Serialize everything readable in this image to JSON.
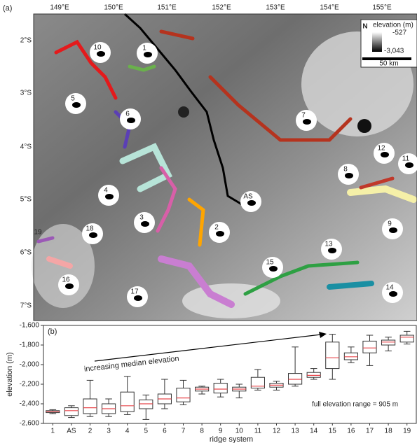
{
  "map": {
    "panel_label": "(a)",
    "lon_ticks": [
      "149°E",
      "150°E",
      "151°E",
      "152°E",
      "153°E",
      "154°E",
      "155°E"
    ],
    "lat_ticks": [
      "2°S",
      "3°S",
      "4°S",
      "5°S",
      "6°S",
      "7°S"
    ],
    "legend": {
      "title": "elevation (m)",
      "max_label": "-527",
      "min_label": "-3,043",
      "scale_bar": "50 km",
      "north": "N"
    },
    "labels": [
      "10",
      "1",
      "5",
      "6",
      "7",
      "12",
      "8",
      "11",
      "4",
      "AS",
      "3",
      "2",
      "9",
      "18",
      "19",
      "13",
      "15",
      "16",
      "14",
      "17"
    ]
  },
  "chart_data": {
    "type": "box",
    "panel_label": "(b)",
    "y_label": "elevation (m)",
    "x_label": "ridge system",
    "annotations": [
      "increasing median elevation",
      "full elevation range = 905 m"
    ],
    "categories": [
      "1",
      "AS",
      "2",
      "3",
      "4",
      "5",
      "6",
      "7",
      "8",
      "9",
      "10",
      "11",
      "12",
      "13",
      "14",
      "15",
      "16",
      "17",
      "18",
      "19"
    ],
    "boxes": [
      {
        "min": -2500,
        "q1": -2490,
        "median": -2480,
        "q3": -2470,
        "max": -2460
      },
      {
        "min": -2540,
        "q1": -2520,
        "median": -2470,
        "q3": -2440,
        "max": -2420
      },
      {
        "min": -2530,
        "q1": -2500,
        "median": -2440,
        "q3": -2350,
        "max": -2160
      },
      {
        "min": -2530,
        "q1": -2500,
        "median": -2450,
        "q3": -2400,
        "max": -2350
      },
      {
        "min": -2510,
        "q1": -2480,
        "median": -2420,
        "q3": -2280,
        "max": -2120
      },
      {
        "min": -2560,
        "q1": -2450,
        "median": -2400,
        "q3": -2360,
        "max": -2310
      },
      {
        "min": -2450,
        "q1": -2400,
        "median": -2350,
        "q3": -2300,
        "max": -2150
      },
      {
        "min": -2410,
        "q1": -2380,
        "median": -2340,
        "q3": -2240,
        "max": -2160
      },
      {
        "min": -2300,
        "q1": -2270,
        "median": -2250,
        "q3": -2230,
        "max": -2220
      },
      {
        "min": -2330,
        "q1": -2290,
        "median": -2250,
        "q3": -2190,
        "max": -2150
      },
      {
        "min": -2340,
        "q1": -2270,
        "median": -2250,
        "q3": -2230,
        "max": -2200
      },
      {
        "min": -2260,
        "q1": -2240,
        "median": -2220,
        "q3": -2130,
        "max": -2050
      },
      {
        "min": -2260,
        "q1": -2230,
        "median": -2210,
        "q3": -2190,
        "max": -2170
      },
      {
        "min": -2220,
        "q1": -2200,
        "median": -2150,
        "q3": -2090,
        "max": -1820
      },
      {
        "min": -2150,
        "q1": -2130,
        "median": -2110,
        "q3": -2080,
        "max": -2040
      },
      {
        "min": -2150,
        "q1": -2040,
        "median": -1930,
        "q3": -1770,
        "max": -1690
      },
      {
        "min": -1980,
        "q1": -1950,
        "median": -1920,
        "q3": -1880,
        "max": -1820
      },
      {
        "min": -2010,
        "q1": -1880,
        "median": -1830,
        "q3": -1760,
        "max": -1700
      },
      {
        "min": -1860,
        "q1": -1800,
        "median": -1770,
        "q3": -1750,
        "max": -1720
      },
      {
        "min": -1790,
        "q1": -1770,
        "median": -1720,
        "q3": -1700,
        "max": -1660
      }
    ],
    "box_color": "#333333",
    "median_color": "#e8474c",
    "ylim": [
      -2600,
      -1600
    ],
    "yticks": [
      {
        "value": -2600,
        "label": "-2,600"
      },
      {
        "value": -2400,
        "label": "-2,400"
      },
      {
        "value": -2200,
        "label": "-2,200"
      },
      {
        "value": -2000,
        "label": "-2,000"
      },
      {
        "value": -1800,
        "label": "-1,800"
      },
      {
        "value": -1600,
        "label": "-1,600"
      }
    ]
  }
}
